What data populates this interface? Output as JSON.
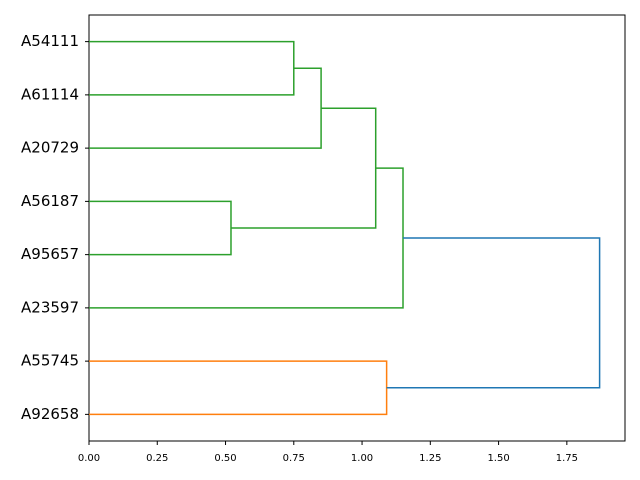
{
  "chart_data": {
    "type": "dendrogram",
    "leaves": [
      "A54111",
      "A61114",
      "A20729",
      "A56187",
      "A95657",
      "A23597",
      "A55745",
      "A92658"
    ],
    "merges": [
      {
        "children": [
          3,
          4
        ],
        "height": 0.52,
        "color": "#2ca02c"
      },
      {
        "children": [
          0,
          1
        ],
        "height": 0.75,
        "color": "#2ca02c"
      },
      {
        "children": [
          9,
          2
        ],
        "height": 0.85,
        "color": "#2ca02c"
      },
      {
        "children": [
          10,
          8
        ],
        "height": 1.05,
        "color": "#2ca02c"
      },
      {
        "children": [
          6,
          7
        ],
        "height": 1.09,
        "color": "#ff7f0e"
      },
      {
        "children": [
          11,
          5
        ],
        "height": 1.15,
        "color": "#2ca02c"
      },
      {
        "children": [
          13,
          12
        ],
        "height": 1.87,
        "color": "#1f77b4"
      }
    ],
    "xlim": [
      0,
      1.963
    ],
    "xticks": [
      {
        "value": 0,
        "label": "0.00"
      },
      {
        "value": 0.25,
        "label": "0.25"
      },
      {
        "value": 0.5,
        "label": "0.50"
      },
      {
        "value": 0.75,
        "label": "0.75"
      },
      {
        "value": 1,
        "label": "1.00"
      },
      {
        "value": 1.25,
        "label": "1.25"
      },
      {
        "value": 1.5,
        "label": "1.50"
      },
      {
        "value": 1.75,
        "label": "1.75"
      }
    ]
  }
}
